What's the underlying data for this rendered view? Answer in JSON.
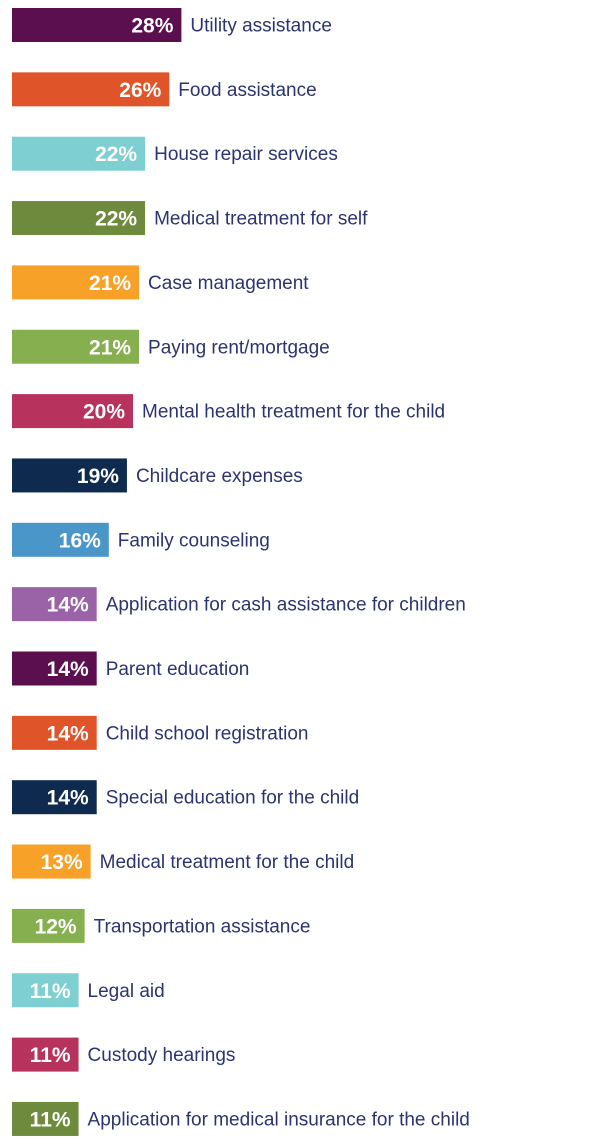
{
  "chart_data": {
    "type": "bar",
    "orientation": "horizontal",
    "categories": [
      "Utility assistance",
      "Food assistance",
      "House repair services",
      "Medical treatment for self",
      "Case management",
      "Paying rent/mortgage",
      "Mental health treatment for the child",
      "Childcare expenses",
      "Family counseling",
      "Application for cash assistance for children",
      "Parent education",
      "Child school registration",
      "Special education for the child",
      "Medical treatment for the child",
      "Transportation assistance",
      "Legal aid",
      "Custody hearings",
      "Application for medical insurance for the child"
    ],
    "values": [
      28,
      26,
      22,
      22,
      21,
      21,
      20,
      19,
      16,
      14,
      14,
      14,
      14,
      13,
      12,
      11,
      11,
      11
    ],
    "value_labels": [
      "28%",
      "26%",
      "22%",
      "22%",
      "21%",
      "21%",
      "20%",
      "19%",
      "16%",
      "14%",
      "14%",
      "14%",
      "14%",
      "13%",
      "12%",
      "11%",
      "11%",
      "11%"
    ],
    "colors": [
      "#5c0f4f",
      "#e0542a",
      "#7ecfd1",
      "#6e8b3d",
      "#f7a128",
      "#86b04f",
      "#b8325e",
      "#0f2a4f",
      "#4a96c8",
      "#9a63a8",
      "#5c0f4f",
      "#e0542a",
      "#0f2a4f",
      "#f7a128",
      "#86b04f",
      "#7ecfd1",
      "#b8325e",
      "#6e8b3d"
    ]
  }
}
